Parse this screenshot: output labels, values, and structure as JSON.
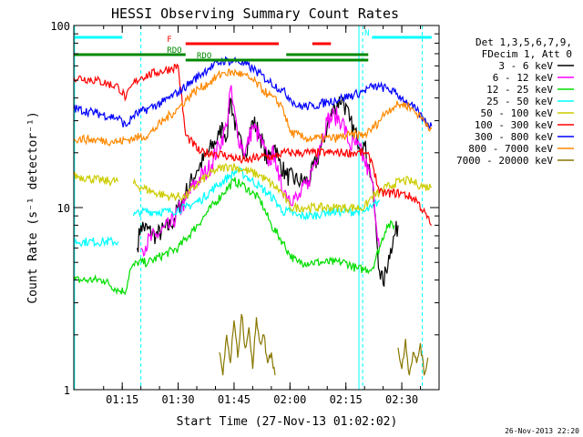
{
  "chart_data": {
    "type": "line",
    "title": "HESSI Observing Summary Count Rates",
    "xlabel": "Start Time (27-Nov-13 01:02:02)",
    "ylabel": "Count Rate (s⁻¹ detector⁻¹)",
    "yscale": "log",
    "ylim": [
      1,
      100
    ],
    "xlim_minutes": [
      0,
      98
    ],
    "x_ticks": [
      "01:15",
      "01:30",
      "01:45",
      "02:00",
      "02:15",
      "02:30"
    ],
    "y_ticks": [
      "1",
      "10",
      "100"
    ],
    "timestamp": "26-Nov-2013 22:20",
    "legend": {
      "placement": "right",
      "header": [
        "Det 1,3,5,6,7,9,",
        "FDecim 1, Att 0"
      ],
      "entries": [
        {
          "label": "3 - 6 keV",
          "color": "#000000"
        },
        {
          "label": "6 - 12 keV",
          "color": "#ff00ff"
        },
        {
          "label": "12 - 25 keV",
          "color": "#00dd00"
        },
        {
          "label": "25 - 50 keV",
          "color": "#00ffff"
        },
        {
          "label": "50 - 100 keV",
          "color": "#cccc00"
        },
        {
          "label": "100 - 300 keV",
          "color": "#ff0000"
        },
        {
          "label": "300 - 800 keV",
          "color": "#0000ff"
        },
        {
          "label": "800 - 7000 keV",
          "color": "#ff8800"
        },
        {
          "label": "7000 - 20000 keV",
          "color": "#887700"
        }
      ]
    },
    "flags": [
      {
        "label": "N",
        "color": "#00ffff"
      },
      {
        "label": "F",
        "color": "#ff0000"
      },
      {
        "label": "RDO",
        "color": "#008800"
      },
      {
        "label": "RDO",
        "color": "#008800"
      }
    ],
    "series": [
      {
        "name": "3 - 6 keV",
        "color": "#000000",
        "x": [
          0,
          12,
          14,
          17,
          18,
          22,
          26,
          30,
          33,
          36,
          39,
          40,
          41,
          42,
          44,
          46,
          48,
          50,
          52,
          54,
          55,
          57,
          60,
          63,
          66,
          68,
          70,
          72,
          74,
          76,
          78,
          80,
          82,
          83,
          85,
          87,
          90,
          93,
          96
        ],
        "y": [
          null,
          null,
          null,
          6,
          8,
          7,
          8,
          12,
          16,
          20,
          25,
          28,
          24,
          40,
          24,
          20,
          30,
          25,
          18,
          22,
          18,
          15,
          14,
          14,
          20,
          28,
          36,
          40,
          30,
          24,
          22,
          14,
          4.5,
          3.8,
          6,
          8,
          null,
          null,
          null
        ]
      },
      {
        "name": "6 - 12 keV",
        "color": "#ff00ff",
        "x": [
          18,
          22,
          26,
          30,
          33,
          36,
          39,
          41,
          42,
          44,
          46,
          48,
          50,
          52,
          54,
          55,
          57,
          60,
          63,
          66,
          68,
          70,
          72,
          74,
          76,
          78,
          80,
          82
        ],
        "y": [
          6,
          7,
          8,
          11,
          14,
          16,
          22,
          28,
          45,
          25,
          20,
          28,
          24,
          18,
          20,
          14,
          12,
          11,
          14,
          22,
          30,
          32,
          30,
          22,
          22,
          18,
          14,
          6
        ]
      },
      {
        "name": "12 - 25 keV",
        "color": "#00dd00",
        "x": [
          0,
          4,
          8,
          12,
          14,
          15,
          17,
          20,
          24,
          28,
          32,
          36,
          40,
          43,
          46,
          50,
          53,
          56,
          58,
          60,
          62,
          64,
          67,
          70,
          73,
          76,
          78,
          80,
          82,
          84,
          86
        ],
        "y": [
          4,
          4,
          4,
          3.5,
          3.5,
          4.5,
          5,
          5,
          5.5,
          6,
          7.5,
          9.5,
          12,
          14,
          13,
          11,
          8,
          6.5,
          5.5,
          5,
          5,
          5,
          5,
          5,
          5,
          4.6,
          4.6,
          4.6,
          6,
          8,
          8
        ]
      },
      {
        "name": "25 - 50 keV",
        "color": "#00ffff",
        "x": [
          0,
          4,
          8,
          12,
          14,
          16,
          18,
          22,
          26,
          30,
          34,
          38,
          42,
          44,
          46,
          50,
          54,
          56,
          58,
          60,
          64,
          68,
          72,
          76,
          78,
          80,
          82
        ],
        "y": [
          6.5,
          6.5,
          6.5,
          6.5,
          null,
          9,
          9.5,
          9.5,
          9.5,
          10,
          11,
          13,
          15,
          16,
          15,
          13,
          11,
          9.5,
          9.5,
          9,
          9,
          9.5,
          9.5,
          9.5,
          9.5,
          10,
          11
        ]
      },
      {
        "name": "50 - 100 keV",
        "color": "#cccc00",
        "x": [
          0,
          4,
          8,
          12,
          14,
          16,
          18,
          22,
          26,
          30,
          34,
          38,
          42,
          46,
          50,
          54,
          56,
          58,
          62,
          66,
          70,
          74,
          78,
          80,
          82,
          84,
          86,
          88,
          90,
          92,
          94,
          96
        ],
        "y": [
          15,
          14.5,
          14,
          14,
          null,
          13.5,
          13,
          12,
          11.5,
          11.5,
          14,
          16,
          17,
          16,
          15,
          13,
          12,
          10,
          10,
          10,
          10,
          10,
          10,
          11.5,
          12,
          13,
          13.5,
          14,
          14,
          13.5,
          13,
          13
        ]
      },
      {
        "name": "100 - 300 keV",
        "color": "#ff0000",
        "x": [
          0,
          6,
          12,
          14,
          16,
          18,
          22,
          26,
          28,
          30,
          34,
          38,
          42,
          46,
          50,
          54,
          56,
          58,
          61,
          64,
          68,
          72,
          76,
          78,
          80,
          82,
          84,
          88,
          92,
          96
        ],
        "y": [
          52,
          50,
          46,
          40,
          48,
          52,
          55,
          58,
          60,
          25,
          20,
          20,
          19,
          18,
          19,
          19,
          20,
          20,
          20,
          20,
          20,
          20,
          20,
          20,
          18,
          12,
          12,
          12,
          11,
          8
        ]
      },
      {
        "name": "300 - 800 keV",
        "color": "#0000ff",
        "x": [
          0,
          6,
          12,
          14,
          16,
          20,
          24,
          28,
          32,
          36,
          40,
          44,
          48,
          52,
          56,
          58,
          60,
          64,
          68,
          72,
          76,
          78,
          80,
          82,
          84,
          86,
          88,
          90,
          92,
          94,
          96
        ],
        "y": [
          35,
          33,
          31,
          28,
          32,
          35,
          38,
          43,
          50,
          58,
          64,
          64,
          58,
          50,
          44,
          40,
          36,
          36,
          38,
          40,
          42,
          44,
          46,
          46,
          45,
          43,
          40,
          37,
          34,
          30,
          28
        ]
      },
      {
        "name": "800 - 7000 keV",
        "color": "#ff8800",
        "x": [
          0,
          6,
          12,
          16,
          20,
          24,
          28,
          32,
          36,
          40,
          44,
          48,
          52,
          56,
          58,
          62,
          66,
          70,
          74,
          78,
          80,
          82,
          84,
          86,
          88,
          90,
          92,
          94,
          96
        ],
        "y": [
          24,
          23.5,
          23,
          24,
          25,
          30,
          35,
          43,
          48,
          55,
          55,
          50,
          42,
          36,
          26,
          24,
          24,
          24,
          25,
          25,
          27,
          30,
          34,
          36,
          37,
          36,
          33,
          30,
          27
        ]
      },
      {
        "name": "7000 - 20000 keV",
        "color": "#887700",
        "x": [
          0,
          38,
          39,
          40,
          41,
          42,
          43,
          44,
          45,
          46,
          47,
          48,
          49,
          50,
          51,
          52,
          53,
          54,
          55,
          86,
          87,
          88,
          89,
          90,
          91,
          92,
          93,
          94,
          95,
          96
        ],
        "y": [
          null,
          null,
          1.6,
          1.2,
          2,
          1.4,
          2.4,
          1.5,
          2.6,
          1.7,
          2.2,
          1.3,
          2.5,
          1.8,
          2,
          1.4,
          1.6,
          1.2,
          null,
          null,
          1.7,
          1.3,
          1.9,
          1.2,
          1.6,
          1.4,
          1.8,
          1.2,
          1.5,
          null
        ]
      }
    ]
  }
}
